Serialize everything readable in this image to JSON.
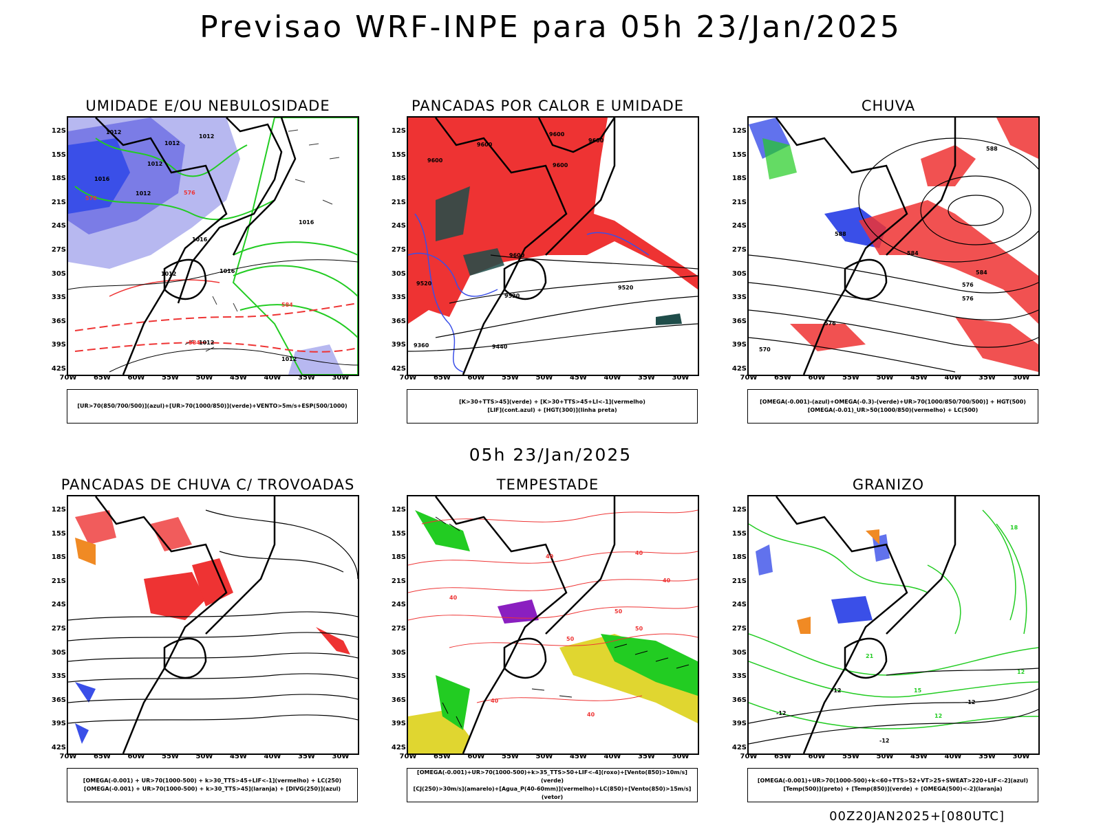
{
  "title": "Previsao WRF-INPE  para 05h 23/Jan/2025",
  "mid_date": "05h 23/Jan/2025",
  "footer": "00Z20JAN2025+[080UTC]",
  "lat_ticks": [
    "12S",
    "15S",
    "18S",
    "21S",
    "24S",
    "27S",
    "30S",
    "33S",
    "36S",
    "39S",
    "42S"
  ],
  "lon_ticks": [
    "70W",
    "65W",
    "60W",
    "55W",
    "50W",
    "45W",
    "40W",
    "35W",
    "30W"
  ],
  "panels": [
    {
      "title": "UMIDADE E/OU NEBULOSIDADE",
      "legend": [
        "[UR>70(850/700/500)](azul)+[UR>70(1000/850)](verde)+VENTO>5m/s+ESP(500/1000)"
      ],
      "contour_labels": [
        "1012",
        "1012",
        "1012",
        "1016",
        "1012",
        "1012",
        "1016",
        "1016",
        "1016",
        "1012",
        "576",
        "576",
        "584",
        "584",
        "1012",
        "1012"
      ]
    },
    {
      "title": "PANCADAS POR CALOR E UMIDADE",
      "legend": [
        "[K>30+TTS>45](verde) + [K>30+TTS>45+LI<-1](vermelho)",
        "[LIF](cont.azul) + [HGT(300)](linha preta)"
      ],
      "contour_labels": [
        "9600",
        "9600",
        "9600",
        "9600",
        "9600",
        "9600",
        "9520",
        "9440",
        "9360",
        "9520",
        "9520"
      ]
    },
    {
      "title": "CHUVA",
      "legend": [
        "[OMEGA(-0.001)-(azul)+OMEGA(-0.3)-(verde)+UR>70(1000/850/700/500)] + HGT(500)",
        "[OMEGA(-0.01)_UR>50(1000/850)(vermelho) + LC(500)"
      ],
      "contour_labels": [
        "588",
        "588",
        "584",
        "584",
        "576",
        "576",
        "576",
        "570"
      ]
    },
    {
      "title": "PANCADAS DE CHUVA C/ TROVOADAS",
      "legend": [
        "[OMEGA(-0.001) + UR>70(1000-500) + k>30_TTS>45+LIF<-1](vermelho) + LC(250)",
        "[OMEGA(-0.001) + UR>70(1000-500) + k>30_TTS>45](laranja) + [DIVG(250)](azul)"
      ],
      "contour_labels": []
    },
    {
      "title": "TEMPESTADE",
      "legend": [
        "[OMEGA(-0.001)+UR>70(1000-500)+k>35_TTS>50+LIF<-4](roxo)+[Vento(850)>10m/s](verde)",
        "[CJ(250)>30m/s](amarelo)+[Agua_P(40-60mm)](vermelho)+LC(850)+[Vento(850)>15m/s](vetor)"
      ],
      "contour_labels": [
        "40",
        "40",
        "40",
        "40",
        "50",
        "50",
        "50",
        "40",
        "40"
      ]
    },
    {
      "title": "GRANIZO",
      "legend": [
        "[OMEGA(-0.001)+UR>70(1000-500)+k<60+TTS>52+VT>25+SWEAT>220+LIF<-2](azul)",
        "[Temp(500)](preto) + [Temp(850)](verde) + [OMEGA(500)<-2](laranja)"
      ],
      "contour_labels": [
        "-12",
        "-12",
        "-12",
        "-12",
        "18",
        "15",
        "12",
        "21",
        "12"
      ]
    }
  ],
  "colors": {
    "blue": "#3a4fe8",
    "light_blue": "#b7b8f0",
    "green": "#22cc22",
    "red": "#ee3333",
    "dark_teal": "#1f4d4a",
    "purple": "#8a1fc0",
    "yellow": "#e0d630",
    "orange": "#f08a24"
  }
}
